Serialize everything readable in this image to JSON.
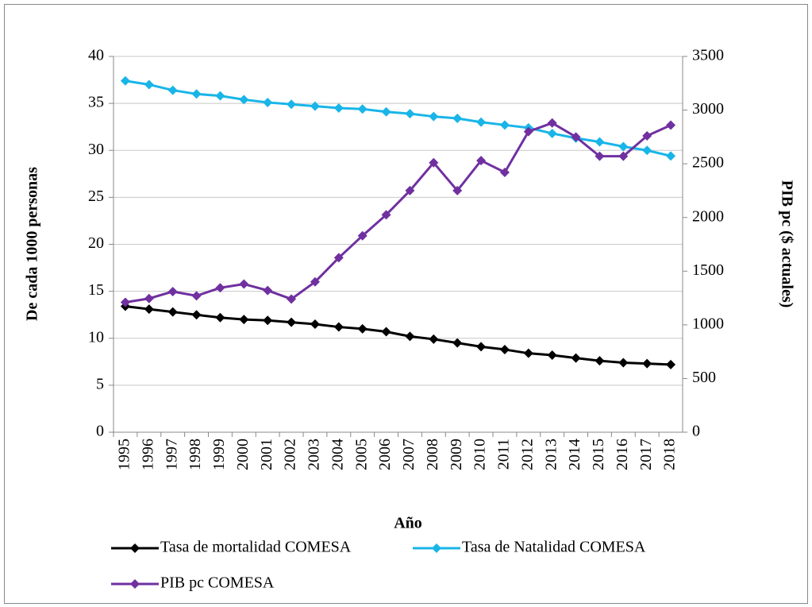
{
  "chart_data": {
    "type": "line",
    "x_label": "Año",
    "y_label": "De cada 1000  personas",
    "y2_label": "PIB pc ($ actuales)",
    "categories": [
      "1995",
      "1996",
      "1997",
      "1998",
      "1999",
      "2000",
      "2001",
      "2002",
      "2003",
      "2004",
      "2005",
      "2006",
      "2007",
      "2008",
      "2009",
      "2010",
      "2011",
      "2012",
      "2013",
      "2014",
      "2015",
      "2016",
      "2017",
      "2018"
    ],
    "series": [
      {
        "name": "Tasa de mortalidad COMESA",
        "color": "#000000",
        "values": [
          13.4,
          13.1,
          12.8,
          12.5,
          12.2,
          12.0,
          11.9,
          11.7,
          11.5,
          11.2,
          11.0,
          10.7,
          10.2,
          9.9,
          9.5,
          9.1,
          8.8,
          8.4,
          8.2,
          7.9,
          7.6,
          7.4,
          7.3,
          7.2
        ]
      },
      {
        "name": "Tasa de Natalidad COMESA",
        "color": "#19b5e8",
        "values": [
          37.4,
          37.0,
          36.4,
          36.0,
          35.8,
          35.4,
          35.1,
          34.9,
          34.7,
          34.5,
          34.4,
          34.1,
          33.9,
          33.6,
          33.4,
          33.0,
          32.7,
          32.4,
          31.8,
          31.3,
          30.9,
          30.4,
          30.0,
          29.4
        ]
      },
      {
        "name": "PIB pc COMESA",
        "color": "#7030a0",
        "axis": "y2",
        "values": [
          1210,
          1245,
          1310,
          1270,
          1345,
          1380,
          1320,
          1240,
          1400,
          1625,
          1830,
          2025,
          2250,
          2510,
          2250,
          2530,
          2420,
          2800,
          2880,
          2750,
          2570,
          2570,
          2760,
          2860
        ]
      }
    ],
    "ylim": [
      0,
      40
    ],
    "yticks": [
      0,
      5,
      10,
      15,
      20,
      25,
      30,
      35,
      40
    ],
    "y2lim": [
      0,
      3500
    ],
    "y2ticks": [
      0,
      500,
      1000,
      1500,
      2000,
      2500,
      3000,
      3500
    ],
    "grid": true
  }
}
